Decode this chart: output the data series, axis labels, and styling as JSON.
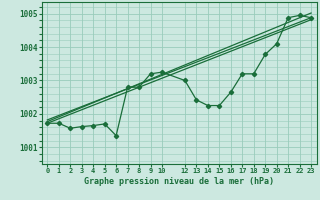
{
  "xlabel": "Graphe pression niveau de la mer (hPa)",
  "bg_color": "#cce8e0",
  "grid_color": "#99ccbb",
  "line_color": "#1a6e3a",
  "spine_color": "#1a6e3a",
  "ylim": [
    1000.5,
    1005.35
  ],
  "xlim": [
    -0.5,
    23.5
  ],
  "yticks": [
    1001,
    1002,
    1003,
    1004,
    1005
  ],
  "xticks": [
    0,
    1,
    2,
    3,
    4,
    5,
    6,
    7,
    8,
    9,
    10,
    12,
    13,
    14,
    15,
    16,
    17,
    18,
    19,
    20,
    21,
    22,
    23
  ],
  "x_main": [
    0,
    1,
    2,
    3,
    4,
    5,
    6,
    7,
    8,
    9,
    10,
    12,
    13,
    14,
    15,
    16,
    17,
    18,
    19,
    20,
    21,
    22,
    23
  ],
  "y_main": [
    1001.72,
    1001.72,
    1001.57,
    1001.62,
    1001.65,
    1001.7,
    1001.35,
    1002.8,
    1002.8,
    1003.2,
    1003.25,
    1003.0,
    1002.42,
    1002.25,
    1002.25,
    1002.65,
    1003.2,
    1003.2,
    1003.78,
    1004.1,
    1004.88,
    1004.95,
    1004.88
  ],
  "trend1_x": [
    0,
    23
  ],
  "trend1_y": [
    1001.72,
    1004.82
  ],
  "trend2_x": [
    0,
    23
  ],
  "trend2_y": [
    1001.82,
    1004.88
  ],
  "trend3_x": [
    0,
    23
  ],
  "trend3_y": [
    1001.77,
    1005.02
  ]
}
